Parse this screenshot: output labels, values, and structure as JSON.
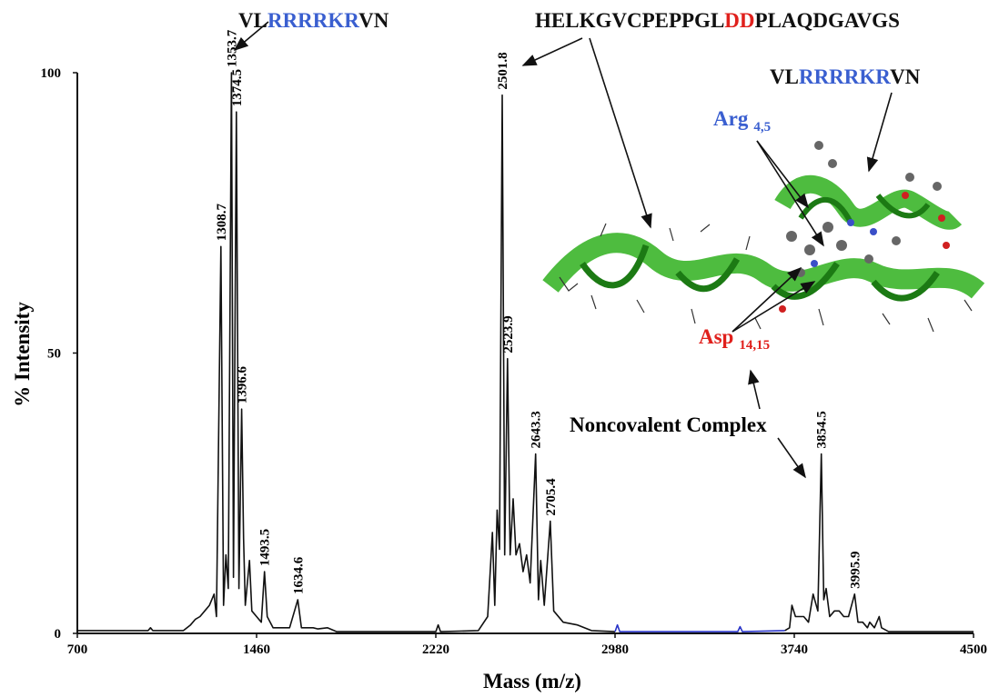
{
  "chart_data": {
    "type": "spectrum",
    "xlabel": "Mass (m/z)",
    "ylabel": "% Intensity",
    "xlim": [
      700,
      4500
    ],
    "xticks": [
      700,
      1460,
      2220,
      2980,
      3740,
      4500
    ],
    "ylim": [
      0,
      100
    ],
    "yticks": [
      0,
      50,
      100
    ],
    "x": [
      700,
      1000,
      1010,
      1020,
      1150,
      1180,
      1200,
      1220,
      1240,
      1260,
      1280,
      1290,
      1308.7,
      1320,
      1330,
      1340,
      1353.7,
      1362,
      1374.5,
      1385,
      1396.6,
      1405,
      1412,
      1430,
      1440,
      1460,
      1480,
      1493.5,
      1505,
      1530,
      1600,
      1634.6,
      1650,
      1700,
      1720,
      1760,
      1800,
      2220,
      2230,
      2240,
      2400,
      2440,
      2460,
      2470,
      2480,
      2490,
      2501.8,
      2512,
      2523.9,
      2535,
      2548,
      2560,
      2575,
      2590,
      2605,
      2620,
      2643.3,
      2655,
      2665,
      2680,
      2705.4,
      2720,
      2760,
      2820,
      2880,
      2980,
      2990,
      3000,
      3500,
      3510,
      3520,
      3700,
      3720,
      3730,
      3745,
      3780,
      3800,
      3820,
      3840,
      3854.5,
      3865,
      3875,
      3890,
      3910,
      3930,
      3950,
      3970,
      3995.9,
      4010,
      4030,
      4050,
      4060,
      4080,
      4100,
      4110,
      4140,
      4300,
      4500
    ],
    "series": [
      {
        "color": "#111111",
        "values": [
          0.5,
          0.5,
          1,
          0.5,
          0.5,
          1.5,
          2.5,
          3,
          4,
          5,
          7,
          3,
          69,
          5,
          14,
          8,
          100,
          10,
          93,
          8,
          40,
          17,
          5,
          13,
          4,
          3,
          2,
          11,
          3,
          1,
          1,
          6,
          1,
          1,
          0.8,
          1,
          0.3,
          0.3,
          1.5,
          0.3,
          0.5,
          3,
          18,
          5,
          22,
          15,
          96,
          14,
          49,
          14,
          24,
          14,
          16,
          11,
          14,
          9,
          32,
          6,
          13,
          5,
          20,
          4,
          2,
          1.5,
          0.5,
          0.3,
          null,
          null,
          null,
          null,
          null,
          0.5,
          1,
          5,
          3,
          3,
          2,
          7,
          4,
          32,
          6,
          8,
          3,
          4,
          4,
          3,
          3,
          7,
          2,
          2,
          1,
          2,
          1,
          3,
          1,
          0.3,
          0.3,
          0.3
        ]
      },
      {
        "color": "#2a35c8",
        "values": [
          null,
          null,
          null,
          null,
          null,
          null,
          null,
          null,
          null,
          null,
          null,
          null,
          null,
          null,
          null,
          null,
          null,
          null,
          null,
          null,
          null,
          null,
          null,
          null,
          null,
          null,
          null,
          null,
          null,
          null,
          null,
          null,
          null,
          null,
          null,
          null,
          null,
          null,
          null,
          null,
          null,
          null,
          null,
          null,
          null,
          null,
          null,
          null,
          null,
          null,
          null,
          null,
          null,
          null,
          null,
          null,
          null,
          null,
          null,
          null,
          null,
          null,
          null,
          null,
          null,
          0.3,
          1.5,
          0.3,
          0.3,
          1.2,
          0.3,
          0.5,
          null,
          null,
          null,
          null,
          null,
          null,
          null,
          null,
          null,
          null,
          null,
          null,
          null,
          null,
          null,
          null,
          null,
          null,
          null,
          null,
          null,
          null,
          null,
          null,
          null,
          null
        ]
      }
    ],
    "peaks": {
      "x": [
        1308.7,
        1353.7,
        1374.5,
        1396.6,
        1493.5,
        1634.6,
        2501.8,
        2523.9,
        2643.3,
        2705.4,
        3854.5,
        3995.9
      ],
      "values": [
        69,
        100,
        93,
        40,
        11,
        6,
        96,
        49,
        32,
        20,
        32,
        7
      ]
    },
    "annotations": {
      "peptide_left": [
        {
          "text": "VL",
          "color": "#111111"
        },
        {
          "text": "RRRRKR",
          "color": "#3a5fd0"
        },
        {
          "text": "VN",
          "color": "#111111"
        }
      ],
      "peptide_long": [
        {
          "text": "HELKGVCPEPPGL",
          "color": "#111111"
        },
        {
          "text": "DD",
          "color": "#e0201c"
        },
        {
          "text": "PLAQDGAVGS",
          "color": "#111111"
        }
      ],
      "peptide_right": [
        {
          "text": "VL",
          "color": "#111111"
        },
        {
          "text": "RRRRKR",
          "color": "#3a5fd0"
        },
        {
          "text": "VN",
          "color": "#111111"
        }
      ],
      "arg": {
        "text": "Arg",
        "sub": "4,5",
        "color": "#3a5fd0"
      },
      "asp": {
        "text": "Asp",
        "sub": "14,15",
        "color": "#e0201c"
      },
      "complex": "Noncovalent Complex"
    }
  }
}
